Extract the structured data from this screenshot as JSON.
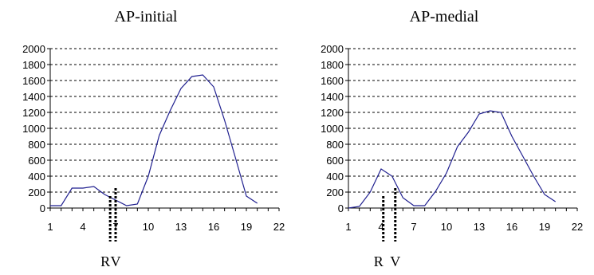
{
  "chart_data": [
    {
      "type": "line",
      "title": "AP-initial",
      "xlabel": "",
      "ylabel": "",
      "xlim": [
        1,
        22
      ],
      "ylim": [
        0,
        2000
      ],
      "xticks": [
        1,
        4,
        7,
        10,
        13,
        16,
        19,
        22
      ],
      "yticks": [
        0,
        200,
        400,
        600,
        800,
        1000,
        1200,
        1400,
        1600,
        1800,
        2000
      ],
      "grid": "horizontal dotted",
      "line_color": "#1f1f8f",
      "series": [
        {
          "x": [
            1,
            2,
            3,
            4,
            5,
            6,
            7,
            8,
            9,
            10,
            11,
            12,
            13,
            14,
            15,
            16,
            17,
            18,
            19,
            20
          ],
          "values": [
            30,
            30,
            250,
            250,
            270,
            170,
            100,
            30,
            50,
            400,
            910,
            1220,
            1500,
            1650,
            1670,
            1520,
            1100,
            630,
            150,
            60
          ]
        }
      ],
      "markers": [
        {
          "label": "R",
          "x": 6.5
        },
        {
          "label": "V",
          "x": 7.0
        }
      ]
    },
    {
      "type": "line",
      "title": "AP-medial",
      "xlabel": "",
      "ylabel": "",
      "xlim": [
        1,
        22
      ],
      "ylim": [
        0,
        2000
      ],
      "xticks": [
        1,
        4,
        7,
        10,
        13,
        16,
        19,
        22
      ],
      "yticks": [
        0,
        200,
        400,
        600,
        800,
        1000,
        1200,
        1400,
        1600,
        1800,
        2000
      ],
      "grid": "horizontal dotted",
      "line_color": "#1f1f8f",
      "series": [
        {
          "x": [
            1,
            2,
            3,
            4,
            5,
            6,
            7,
            8,
            9,
            10,
            11,
            12,
            13,
            14,
            15,
            16,
            17,
            18,
            19,
            20
          ],
          "values": [
            0,
            20,
            200,
            490,
            400,
            130,
            30,
            30,
            210,
            440,
            770,
            950,
            1180,
            1220,
            1200,
            900,
            650,
            400,
            170,
            80
          ]
        }
      ],
      "markers": [
        {
          "label": "R",
          "x": 4.2
        },
        {
          "label": "V",
          "x": 5.3
        }
      ]
    }
  ]
}
